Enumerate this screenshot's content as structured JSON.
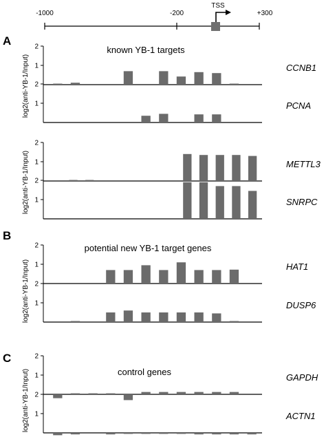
{
  "chart_data": {
    "type": "bar",
    "bar_color": "#6b6b6b",
    "promoter_axis": {
      "tick_labels": [
        "-1000",
        "-200",
        "+300"
      ],
      "tss_label": "TSS"
    },
    "ylim": [
      0,
      2
    ],
    "y_ticks": [
      "1",
      "2"
    ],
    "ylabel": "log2(anti-YB-1/Input)",
    "panels": [
      {
        "letter": "A",
        "title": "known YB-1 targets",
        "groups": [
          {
            "genes": [
              {
                "name": "CCNB1",
                "values": [
                  0.03,
                  0.1,
                  0.0,
                  0.0,
                  0.7,
                  0.0,
                  0.7,
                  0.42,
                  0.65,
                  0.6,
                  0.03,
                  0.0
                ]
              },
              {
                "name": "PCNA",
                "values": [
                  0.0,
                  0.0,
                  0.0,
                  0.0,
                  0.0,
                  0.35,
                  0.45,
                  0.0,
                  0.42,
                  0.42,
                  0.0,
                  0.0
                ]
              }
            ]
          },
          {
            "genes": [
              {
                "name": "METTL3",
                "values": [
                  0.0,
                  0.02,
                  0.02,
                  0.0,
                  0.0,
                  0.0,
                  0.0,
                  0.0,
                  1.4,
                  1.35,
                  1.35,
                  1.35,
                  1.3
                ]
              },
              {
                "name": "SNRPC",
                "values": [
                  0.0,
                  0.0,
                  0.0,
                  0.0,
                  0.0,
                  0.0,
                  0.0,
                  0.0,
                  1.9,
                  1.9,
                  1.7,
                  1.7,
                  1.45
                ]
              }
            ]
          }
        ]
      },
      {
        "letter": "B",
        "title": "potential new YB-1 target genes",
        "groups": [
          {
            "genes": [
              {
                "name": "HAT1",
                "values": [
                  0.0,
                  0.0,
                  0.0,
                  0.7,
                  0.7,
                  0.95,
                  0.7,
                  1.1,
                  0.7,
                  0.7,
                  0.72,
                  0.0
                ]
              },
              {
                "name": "DUSP6",
                "values": [
                  0.0,
                  0.01,
                  0.0,
                  0.5,
                  0.6,
                  0.5,
                  0.5,
                  0.5,
                  0.5,
                  0.45,
                  0.02,
                  0.0
                ]
              }
            ]
          }
        ]
      },
      {
        "letter": "C",
        "title": "control genes",
        "groups": [
          {
            "genes": [
              {
                "name": "GAPDH",
                "values": [
                  -0.2,
                  0.05,
                  0.05,
                  0.05,
                  -0.3,
                  0.12,
                  0.12,
                  0.12,
                  0.12,
                  0.12,
                  0.12,
                  0.0
                ]
              },
              {
                "name": "ACTN1",
                "values": [
                  -0.12,
                  -0.08,
                  0.0,
                  -0.08,
                  -0.04,
                  -0.04,
                  -0.04,
                  -0.04,
                  -0.08,
                  -0.08,
                  -0.08,
                  -0.08
                ]
              }
            ]
          }
        ]
      }
    ]
  }
}
